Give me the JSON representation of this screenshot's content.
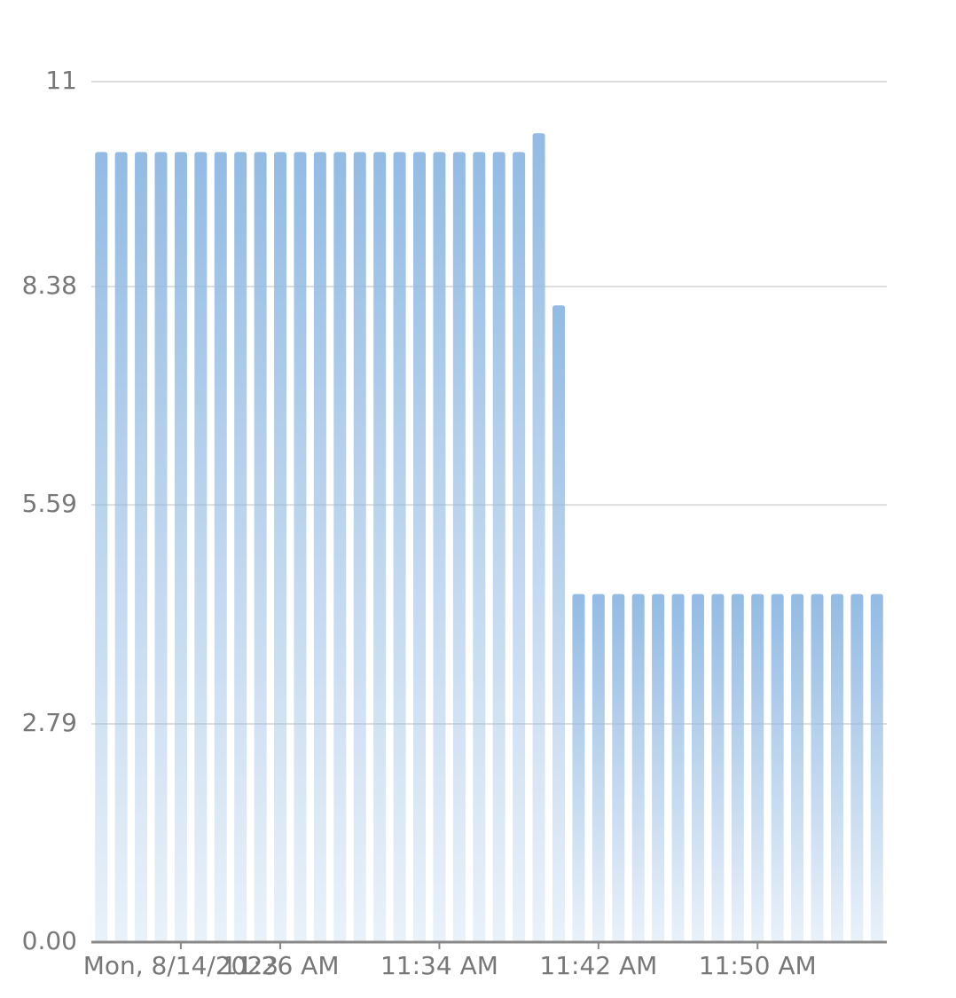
{
  "chart_data": {
    "type": "bar",
    "categories": [
      null,
      null,
      null,
      null,
      "Mon, 8/14/2023",
      null,
      null,
      null,
      null,
      "11:26 AM",
      null,
      null,
      null,
      null,
      null,
      null,
      null,
      "11:34 AM",
      null,
      null,
      null,
      null,
      null,
      null,
      null,
      "11:42 AM",
      null,
      null,
      null,
      null,
      null,
      null,
      null,
      "11:50 AM",
      null,
      null,
      null,
      null,
      null,
      null
    ],
    "values": [
      10.1,
      10.1,
      10.1,
      10.1,
      10.1,
      10.1,
      10.1,
      10.1,
      10.1,
      10.1,
      10.1,
      10.1,
      10.1,
      10.1,
      10.1,
      10.1,
      10.1,
      10.1,
      10.1,
      10.1,
      10.1,
      10.1,
      10.34,
      8.14,
      4.45,
      4.45,
      4.45,
      4.45,
      4.45,
      4.45,
      4.45,
      4.45,
      4.45,
      4.45,
      4.45,
      4.45,
      4.45,
      4.45,
      4.45,
      4.45
    ],
    "color": "#93bbe3",
    "ylim": [
      0,
      11
    ],
    "yticks": [
      {
        "value": 0,
        "label": "0.00"
      },
      2.79,
      5.59,
      8.38,
      11
    ],
    "grid": true
  }
}
